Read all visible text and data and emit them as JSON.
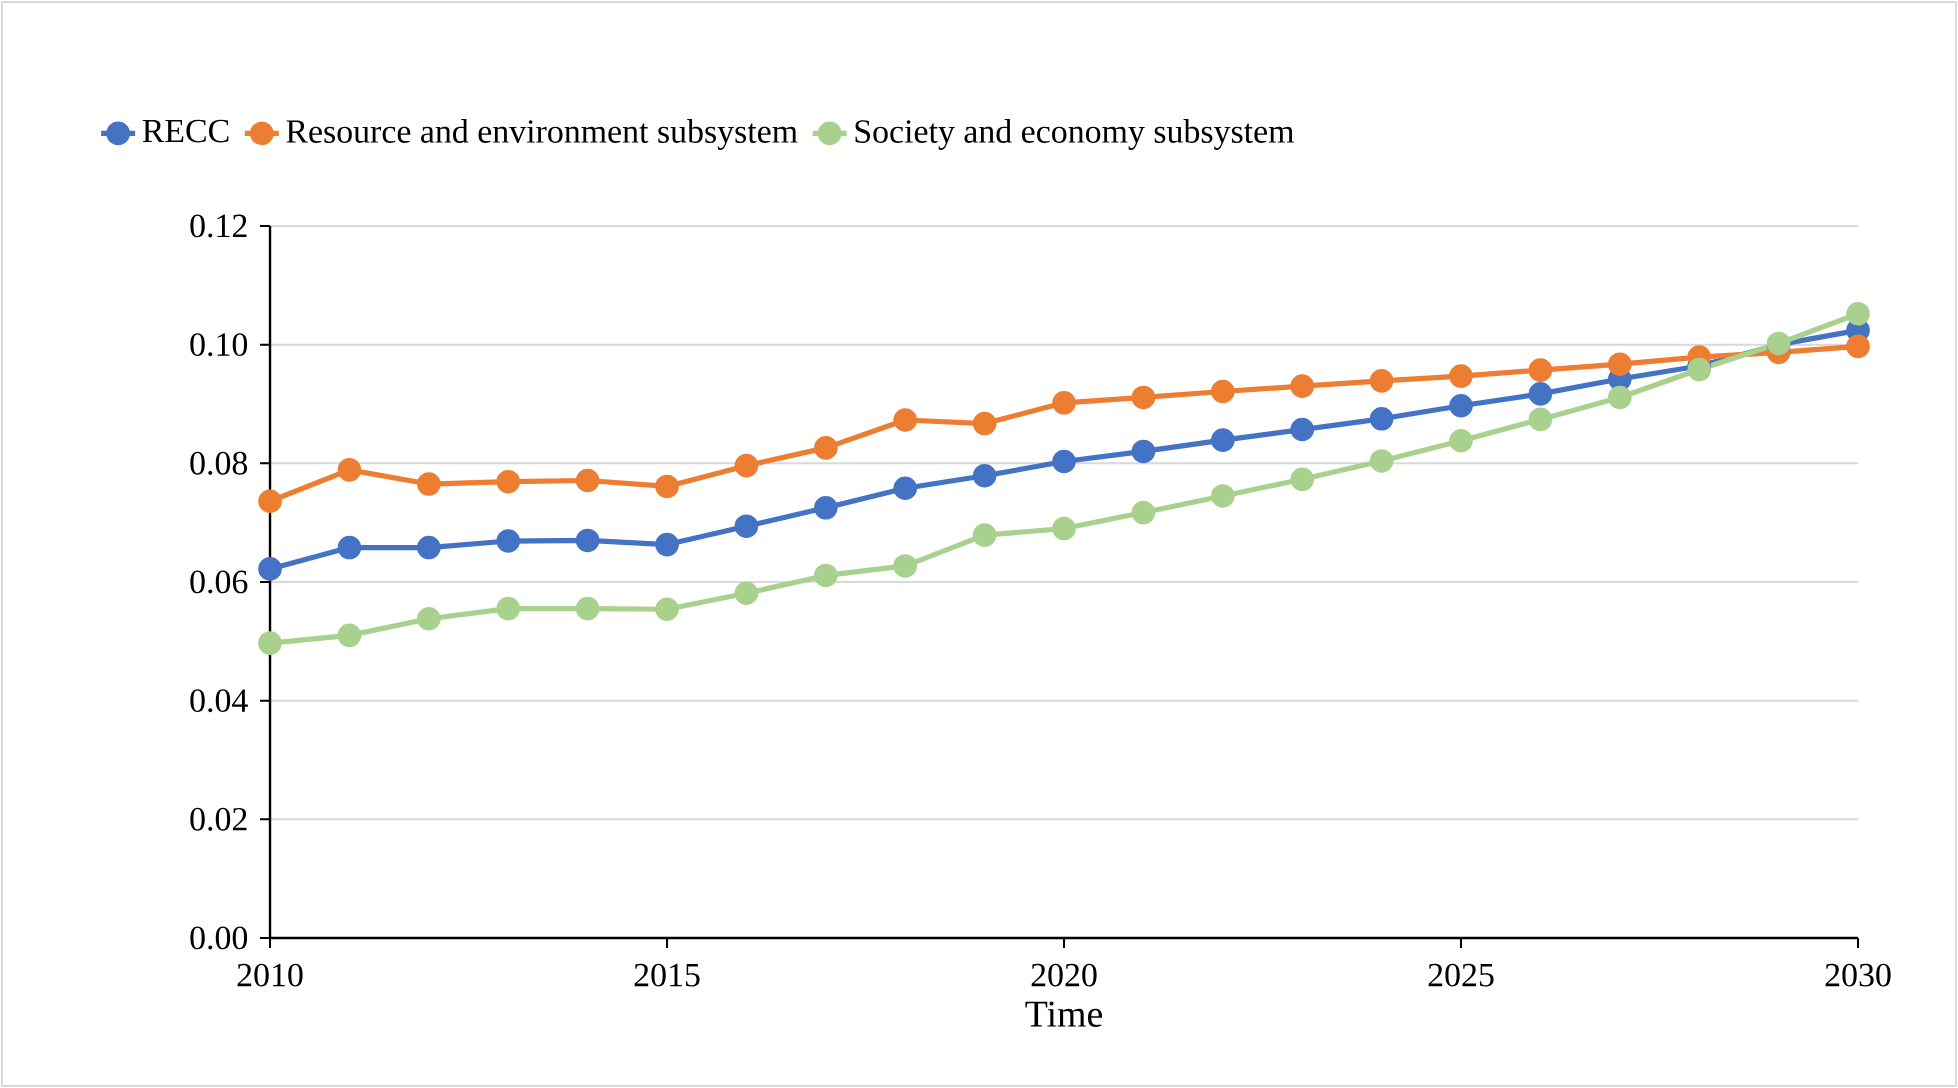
{
  "chart_data": {
    "type": "line",
    "xlabel": "Time",
    "x": [
      2010,
      2011,
      2012,
      2013,
      2014,
      2015,
      2016,
      2017,
      2018,
      2019,
      2020,
      2021,
      2022,
      2023,
      2024,
      2025,
      2026,
      2027,
      2028,
      2029,
      2030
    ],
    "series": [
      {
        "name": "RECC",
        "color": "#4472c4",
        "values": [
          0.0622,
          0.0658,
          0.0658,
          0.0669,
          0.067,
          0.0663,
          0.0694,
          0.0725,
          0.0758,
          0.0779,
          0.0803,
          0.082,
          0.0839,
          0.0857,
          0.0875,
          0.0897,
          0.0917,
          0.0942,
          0.0964,
          0.1,
          0.1024
        ]
      },
      {
        "name": "Resource and environment subsystem",
        "color": "#ed7d31",
        "values": [
          0.0736,
          0.0789,
          0.0765,
          0.0769,
          0.0771,
          0.0761,
          0.0796,
          0.0826,
          0.0873,
          0.0867,
          0.0902,
          0.0911,
          0.0921,
          0.093,
          0.0939,
          0.0947,
          0.0957,
          0.0967,
          0.0979,
          0.0987,
          0.0997
        ]
      },
      {
        "name": "Society and economy subsystem",
        "color": "#a9d18e",
        "values": [
          0.0497,
          0.051,
          0.0538,
          0.0555,
          0.0555,
          0.0554,
          0.0581,
          0.0611,
          0.0627,
          0.0679,
          0.069,
          0.0717,
          0.0745,
          0.0773,
          0.0804,
          0.0838,
          0.0874,
          0.0911,
          0.0958,
          0.1002,
          0.1052
        ]
      }
    ],
    "xlim": [
      2010,
      2030
    ],
    "xticks": [
      2010,
      2015,
      2020,
      2025,
      2030
    ],
    "ylim": [
      0,
      0.12
    ],
    "yticks": [
      {
        "value": 0,
        "label": "0.00"
      },
      {
        "value": 0.02,
        "label": "0.02"
      },
      {
        "value": 0.04,
        "label": "0.04"
      },
      {
        "value": 0.06,
        "label": "0.06"
      },
      {
        "value": 0.08,
        "label": "0.08"
      },
      {
        "value": 0.1,
        "label": "0.10"
      },
      {
        "value": 0.12,
        "label": "0.12"
      }
    ],
    "grid": "y",
    "legend": "top",
    "marker": "circle",
    "line_style": "solid"
  }
}
